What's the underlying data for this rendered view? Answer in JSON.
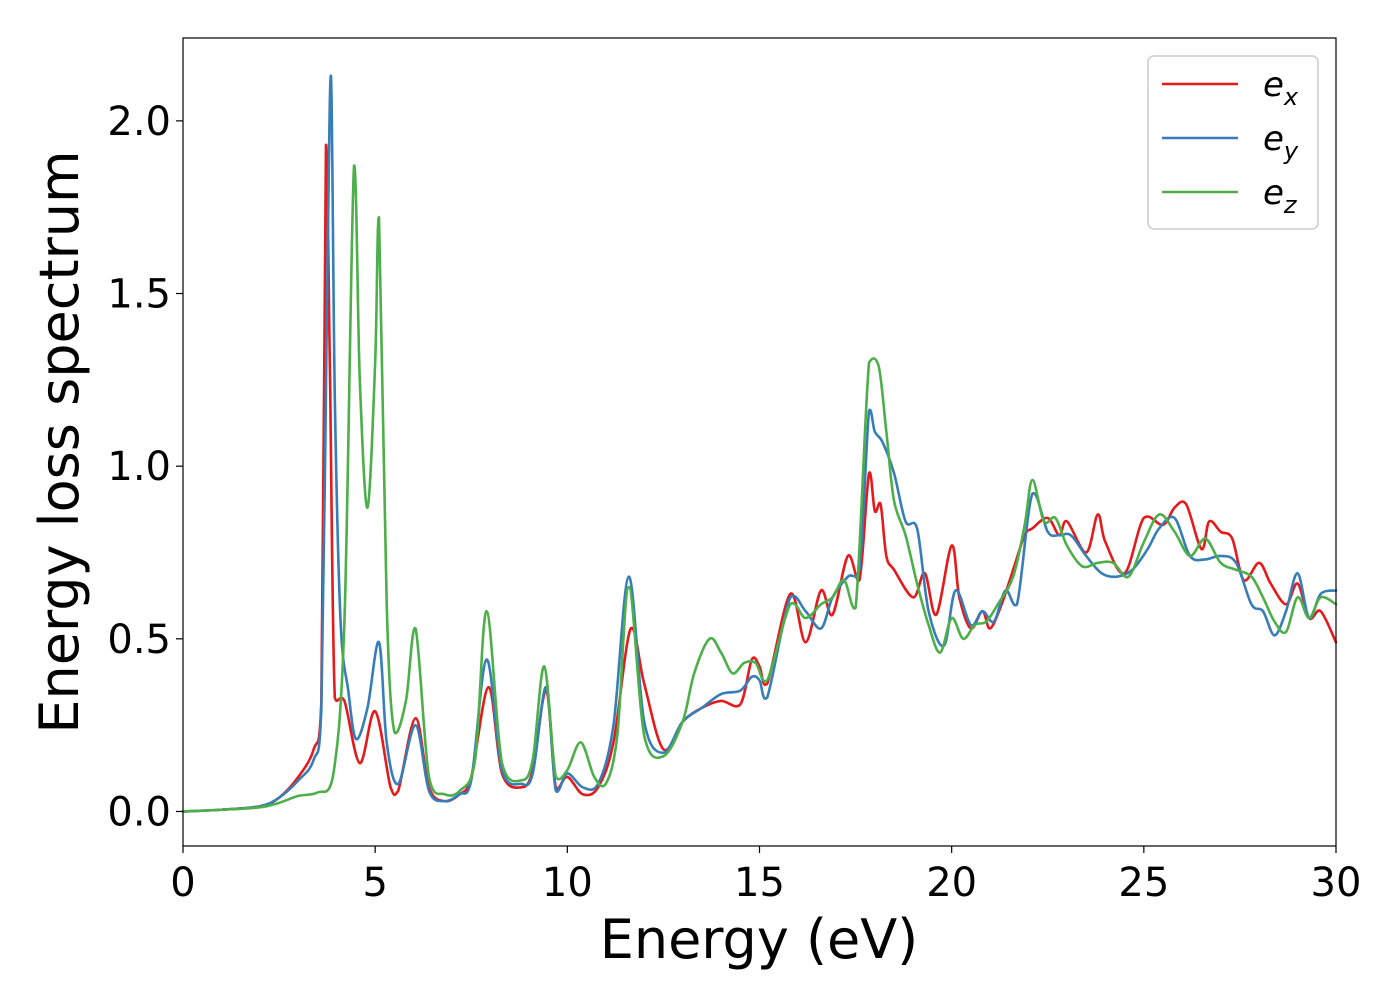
{
  "chart_data": {
    "type": "line",
    "title": "",
    "xlabel": "Energy (eV)",
    "ylabel": "Energy loss spectrum",
    "xlim": [
      0,
      30
    ],
    "ylim": [
      -0.1,
      2.24
    ],
    "xticks": [
      "0",
      "5",
      "10",
      "15",
      "20",
      "25",
      "30"
    ],
    "yticks": [
      "0.0",
      "0.5",
      "1.0",
      "1.5",
      "2.0"
    ],
    "grid": false,
    "legend_position": "top-right",
    "legend": [
      {
        "base": "e",
        "sub": "x"
      },
      {
        "base": "e",
        "sub": "y"
      },
      {
        "base": "e",
        "sub": "z"
      }
    ],
    "series": [
      {
        "color": "#e41a1c",
        "x": [
          0,
          1,
          2,
          2.5,
          3.0,
          3.4,
          3.6,
          3.72,
          3.82,
          3.95,
          4.2,
          4.6,
          5.0,
          5.4,
          5.6,
          6.05,
          6.4,
          6.8,
          7.2,
          7.5,
          7.95,
          8.3,
          8.8,
          9.1,
          9.45,
          9.7,
          10.0,
          10.4,
          10.8,
          11.2,
          11.65,
          12.0,
          12.5,
          13.0,
          13.5,
          14.0,
          14.5,
          14.8,
          15.0,
          15.2,
          15.8,
          16.2,
          16.6,
          16.9,
          17.3,
          17.6,
          17.85,
          18.0,
          18.15,
          18.3,
          18.5,
          19.0,
          19.3,
          19.6,
          20.0,
          20.2,
          20.5,
          20.8,
          21.0,
          21.3,
          21.6,
          21.9,
          22.1,
          22.5,
          22.8,
          23.0,
          23.5,
          23.8,
          24.0,
          24.5,
          25.0,
          25.5,
          25.8,
          26.1,
          26.5,
          26.7,
          27.0,
          27.3,
          27.6,
          28.0,
          28.3,
          28.7,
          29.0,
          29.3,
          29.6,
          30.0
        ],
        "y": [
          0.0,
          0.005,
          0.015,
          0.04,
          0.1,
          0.18,
          0.32,
          1.93,
          1.3,
          0.33,
          0.32,
          0.14,
          0.29,
          0.07,
          0.06,
          0.27,
          0.07,
          0.03,
          0.05,
          0.1,
          0.36,
          0.11,
          0.07,
          0.12,
          0.35,
          0.07,
          0.1,
          0.05,
          0.07,
          0.2,
          0.53,
          0.37,
          0.18,
          0.26,
          0.3,
          0.32,
          0.31,
          0.44,
          0.42,
          0.37,
          0.63,
          0.49,
          0.64,
          0.57,
          0.74,
          0.67,
          0.98,
          0.87,
          0.89,
          0.74,
          0.7,
          0.62,
          0.69,
          0.57,
          0.77,
          0.62,
          0.53,
          0.58,
          0.53,
          0.6,
          0.7,
          0.8,
          0.82,
          0.85,
          0.8,
          0.84,
          0.75,
          0.86,
          0.78,
          0.69,
          0.85,
          0.83,
          0.88,
          0.89,
          0.76,
          0.84,
          0.81,
          0.79,
          0.67,
          0.72,
          0.66,
          0.6,
          0.66,
          0.56,
          0.58,
          0.49
        ]
      },
      {
        "color": "#377eb8",
        "x": [
          0,
          1,
          2,
          2.5,
          3.0,
          3.4,
          3.6,
          3.75,
          3.85,
          3.95,
          4.1,
          4.3,
          4.5,
          4.8,
          5.1,
          5.3,
          5.6,
          6.05,
          6.4,
          6.8,
          7.2,
          7.5,
          7.9,
          8.3,
          8.8,
          9.1,
          9.45,
          9.7,
          10.0,
          10.4,
          10.8,
          11.2,
          11.6,
          12.0,
          12.5,
          13.0,
          13.5,
          14.0,
          14.5,
          14.8,
          15.0,
          15.2,
          15.8,
          16.2,
          16.6,
          16.9,
          17.3,
          17.6,
          17.85,
          18.0,
          18.2,
          18.5,
          18.8,
          19.1,
          19.4,
          19.8,
          20.1,
          20.5,
          20.8,
          21.1,
          21.4,
          21.7,
          22.1,
          22.5,
          22.8,
          23.1,
          23.5,
          23.9,
          24.3,
          24.7,
          25.1,
          25.4,
          25.8,
          26.2,
          26.6,
          27.0,
          27.4,
          27.8,
          28.1,
          28.4,
          28.7,
          29.0,
          29.3,
          29.6,
          30.0
        ],
        "y": [
          0.0,
          0.005,
          0.015,
          0.04,
          0.09,
          0.15,
          0.3,
          1.5,
          2.13,
          1.2,
          0.55,
          0.35,
          0.21,
          0.3,
          0.49,
          0.2,
          0.08,
          0.25,
          0.06,
          0.03,
          0.05,
          0.09,
          0.44,
          0.12,
          0.08,
          0.11,
          0.36,
          0.06,
          0.11,
          0.07,
          0.08,
          0.25,
          0.68,
          0.26,
          0.17,
          0.26,
          0.3,
          0.34,
          0.35,
          0.39,
          0.38,
          0.33,
          0.62,
          0.58,
          0.53,
          0.62,
          0.68,
          0.7,
          1.16,
          1.1,
          1.07,
          0.98,
          0.84,
          0.82,
          0.58,
          0.48,
          0.64,
          0.54,
          0.58,
          0.55,
          0.64,
          0.6,
          0.92,
          0.81,
          0.8,
          0.8,
          0.74,
          0.69,
          0.68,
          0.7,
          0.76,
          0.82,
          0.85,
          0.74,
          0.73,
          0.74,
          0.72,
          0.6,
          0.58,
          0.51,
          0.58,
          0.69,
          0.56,
          0.63,
          0.64
        ]
      },
      {
        "color": "#4daf4a",
        "x": [
          0,
          1,
          2,
          2.5,
          3.0,
          3.5,
          3.9,
          4.2,
          4.45,
          4.6,
          4.8,
          5.0,
          5.1,
          5.3,
          5.5,
          5.8,
          6.05,
          6.4,
          6.8,
          7.2,
          7.6,
          7.9,
          8.3,
          8.8,
          9.1,
          9.4,
          9.7,
          10.0,
          10.35,
          10.7,
          11.0,
          11.3,
          11.6,
          12.0,
          12.5,
          13.0,
          13.3,
          13.7,
          14.0,
          14.3,
          14.6,
          14.9,
          15.2,
          15.8,
          16.2,
          16.6,
          16.9,
          17.2,
          17.5,
          17.85,
          18.1,
          18.3,
          18.5,
          18.8,
          19.1,
          19.4,
          19.7,
          20.0,
          20.3,
          20.6,
          20.9,
          21.2,
          21.6,
          21.9,
          22.1,
          22.4,
          22.7,
          23.0,
          23.4,
          23.8,
          24.2,
          24.6,
          25.0,
          25.4,
          25.8,
          26.2,
          26.6,
          27.0,
          27.4,
          27.8,
          28.1,
          28.4,
          28.7,
          29.0,
          29.3,
          29.6,
          30.0
        ],
        "y": [
          0.0,
          0.005,
          0.012,
          0.025,
          0.045,
          0.055,
          0.1,
          0.55,
          1.87,
          1.25,
          0.88,
          1.3,
          1.72,
          0.6,
          0.23,
          0.32,
          0.53,
          0.1,
          0.05,
          0.06,
          0.15,
          0.58,
          0.14,
          0.09,
          0.15,
          0.42,
          0.1,
          0.12,
          0.2,
          0.1,
          0.08,
          0.22,
          0.65,
          0.22,
          0.16,
          0.26,
          0.4,
          0.5,
          0.46,
          0.4,
          0.43,
          0.43,
          0.38,
          0.6,
          0.56,
          0.6,
          0.62,
          0.67,
          0.59,
          1.3,
          1.29,
          1.1,
          0.9,
          0.8,
          0.66,
          0.54,
          0.46,
          0.56,
          0.5,
          0.54,
          0.55,
          0.6,
          0.68,
          0.83,
          0.96,
          0.84,
          0.85,
          0.77,
          0.71,
          0.72,
          0.72,
          0.68,
          0.78,
          0.86,
          0.81,
          0.74,
          0.79,
          0.72,
          0.7,
          0.68,
          0.62,
          0.55,
          0.52,
          0.62,
          0.56,
          0.62,
          0.6
        ]
      }
    ]
  }
}
